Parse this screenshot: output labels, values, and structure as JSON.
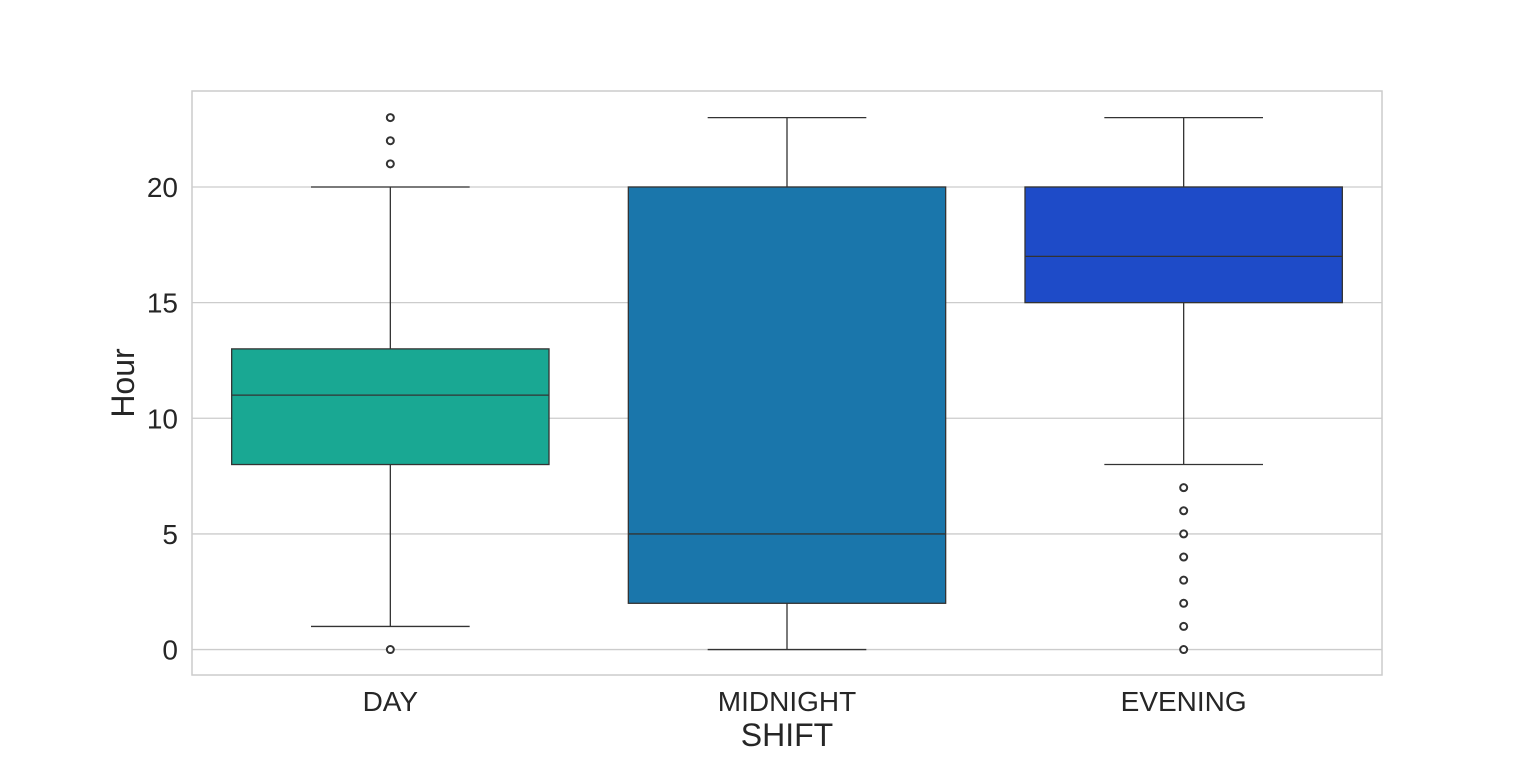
{
  "chart_data": {
    "type": "box",
    "xlabel": "SHIFT",
    "ylabel": "Hour",
    "ylim": [
      -1.1,
      24.15
    ],
    "yticks": [
      0,
      5,
      10,
      15,
      20
    ],
    "grid": true,
    "categories": [
      "DAY",
      "MIDNIGHT",
      "EVENING"
    ],
    "boxes": [
      {
        "category": "DAY",
        "whisker_low": 1,
        "q1": 8,
        "median": 11,
        "q3": 13,
        "whisker_high": 20,
        "outliers": [
          0,
          21,
          22,
          23
        ],
        "color": "#19a893"
      },
      {
        "category": "MIDNIGHT",
        "whisker_low": 0,
        "q1": 2,
        "median": 5,
        "q3": 20,
        "whisker_high": 23,
        "outliers": [],
        "color": "#1a76ab"
      },
      {
        "category": "EVENING",
        "whisker_low": 8,
        "q1": 15,
        "median": 17,
        "q3": 20,
        "whisker_high": 23,
        "outliers": [
          0,
          1,
          2,
          3,
          4,
          5,
          6,
          7
        ],
        "color": "#1e4bc8"
      }
    ]
  }
}
